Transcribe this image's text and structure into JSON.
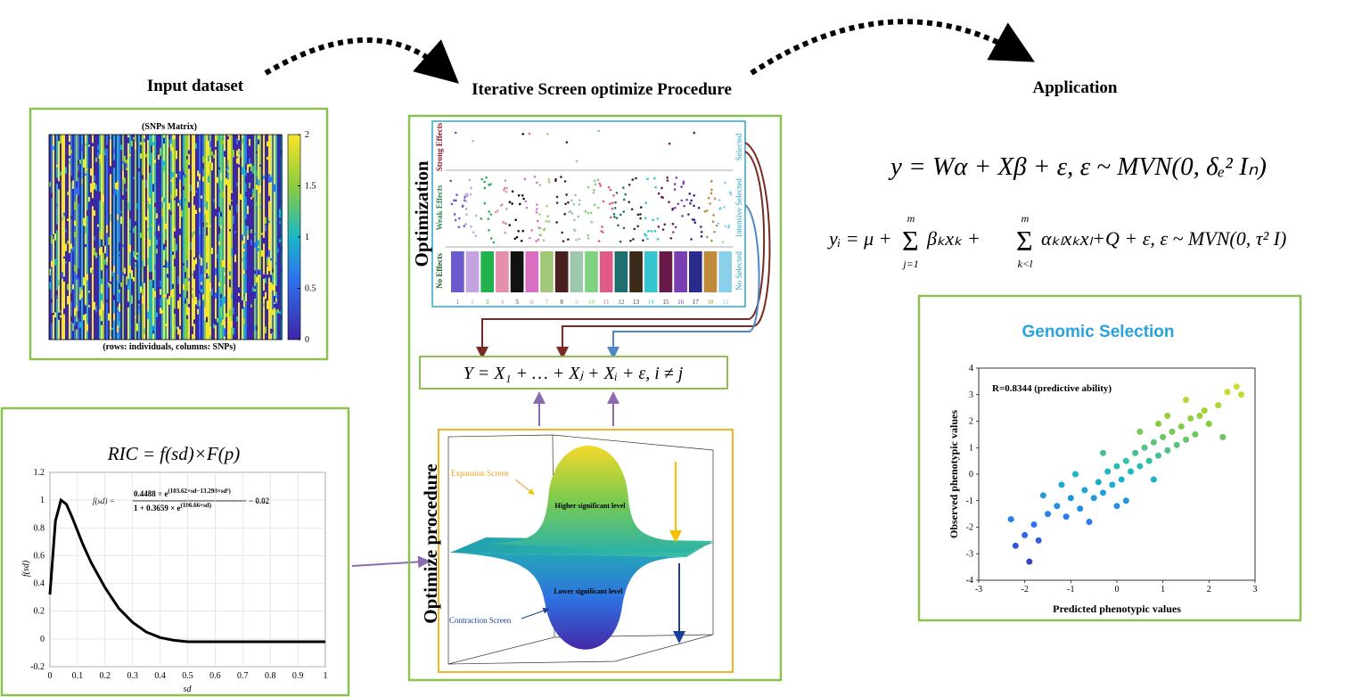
{
  "headers": {
    "input": "Input dataset",
    "procedure": "Iterative Screen optimize Procedure",
    "application": "Application"
  },
  "snp_matrix": {
    "title": "(SNPs Matrix)",
    "caption": "(rows: individuals, columns: SNPs)",
    "colorbar_lim": [
      0,
      2
    ],
    "colorbar_ticks": [
      0,
      0.5,
      1,
      1.5,
      2
    ]
  },
  "ric": {
    "title": "RIC = f(sd)×F(p)",
    "formula": {
      "lhs": "f(sd) =",
      "num_base": "0.4488 × e",
      "num_exp": "(103.62×sd−13.298×sd²)",
      "den_base": "1 + 0.3659 × e",
      "den_exp": "(106.66×sd)",
      "tail": "− 0.02"
    },
    "xlabel": "sd",
    "ylabel": "f(sd)",
    "xlim": [
      0,
      1
    ],
    "ylim": [
      -0.2,
      1.2
    ],
    "xticks": [
      0,
      0.1,
      0.2,
      0.3,
      0.4,
      0.5,
      0.6,
      0.7,
      0.8,
      0.9,
      1
    ],
    "yticks": [
      -0.2,
      0,
      0.2,
      0.4,
      0.6,
      0.8,
      1,
      1.2
    ],
    "x": [
      0,
      0.02,
      0.04,
      0.06,
      0.08,
      0.1,
      0.12,
      0.15,
      0.2,
      0.25,
      0.3,
      0.35,
      0.4,
      0.45,
      0.5,
      0.55,
      0.6,
      0.7,
      0.8,
      0.9,
      1
    ],
    "y": [
      0.32,
      0.85,
      1.0,
      0.97,
      0.88,
      0.78,
      0.68,
      0.55,
      0.37,
      0.22,
      0.12,
      0.05,
      0.01,
      -0.01,
      -0.02,
      -0.02,
      -0.02,
      -0.02,
      -0.02,
      -0.02,
      -0.02
    ]
  },
  "optimization": {
    "title": "Optimization",
    "bands": [
      "Strong Effects",
      "Weak Effects",
      "No Effects"
    ],
    "status": [
      "Selected",
      "Intensive Selected",
      "No Selected"
    ],
    "groups": [
      1,
      2,
      3,
      4,
      5,
      6,
      7,
      8,
      9,
      10,
      11,
      12,
      13,
      14,
      15,
      16,
      17,
      18,
      19
    ]
  },
  "model_equation": "Y = X₁ + … + Xⱼ + Xᵢ + ε, i ≠ j",
  "optimize_procedure": {
    "title": "Optimize procedure",
    "expansion": "Expansion Screen",
    "higher": "Higher significant level",
    "lower": "Lower significant level",
    "contraction": "Contraction Screen"
  },
  "application": {
    "equation_1": "y = Wα + Xβ + ε, ε ~ MVN(0, δₑ² Iₙ)",
    "equation_2": {
      "lhs": "yᵢ = μ +",
      "sum1": "Σ",
      "sum1_top": "m",
      "sum1_bottom": "j=1",
      "term1": "βₖxₖ +",
      "sum2": "Σ",
      "sum2_top": "m",
      "sum2_bottom": "k<l",
      "term2": "αₖₗxₖxₗ+Q + ε, ε ~ MVN(0, τ² I)"
    }
  },
  "genomic_selection": {
    "title": "Genomic Selection",
    "annotation": "R=0.8344 (predictive ability)",
    "xlabel": "Predicted phenotypic values",
    "ylabel": "Observed phenotypic values",
    "xlim": [
      -3,
      3
    ],
    "ylim": [
      -4,
      4
    ],
    "xticks": [
      -3,
      -2,
      -1,
      0,
      1,
      2,
      3
    ],
    "yticks": [
      -4,
      -3,
      -2,
      -1,
      0,
      1,
      2,
      3,
      4
    ],
    "x": [
      -1.9,
      -2.2,
      -2.0,
      -1.7,
      -1.8,
      -1.5,
      -1.3,
      -1.1,
      -1.0,
      -0.8,
      -0.7,
      -0.5,
      -0.4,
      -0.3,
      -0.2,
      -0.1,
      0,
      0.1,
      0.2,
      0.3,
      0.4,
      0.5,
      0.6,
      0.7,
      0.8,
      0.9,
      1.0,
      1.1,
      1.2,
      1.3,
      1.4,
      1.5,
      1.6,
      1.7,
      1.9,
      2.0,
      2.2,
      2.4,
      2.6,
      2.7,
      -1.2,
      -0.6,
      0.2,
      0.8,
      1.5,
      -2.3,
      -0.9,
      0.5,
      1.1,
      -1.6,
      2.3,
      0.0,
      -0.3,
      1.8,
      0.9
    ],
    "y": [
      -3.3,
      -2.7,
      -2.3,
      -2.5,
      -1.9,
      -1.5,
      -1.2,
      -1.6,
      -0.9,
      -1.3,
      -0.6,
      -0.9,
      -0.3,
      -0.7,
      0.1,
      -0.4,
      0.3,
      -0.2,
      0.5,
      0.1,
      0.8,
      0.3,
      1.0,
      0.5,
      1.2,
      0.7,
      1.4,
      0.9,
      1.6,
      1.1,
      1.8,
      1.3,
      2.1,
      1.5,
      2.4,
      1.9,
      2.6,
      3.1,
      3.3,
      3.0,
      -0.4,
      -1.8,
      -1.0,
      -0.2,
      2.8,
      -1.7,
      0.0,
      1.6,
      2.2,
      -0.8,
      1.4,
      -1.2,
      0.8,
      2.2,
      1.9
    ]
  }
}
